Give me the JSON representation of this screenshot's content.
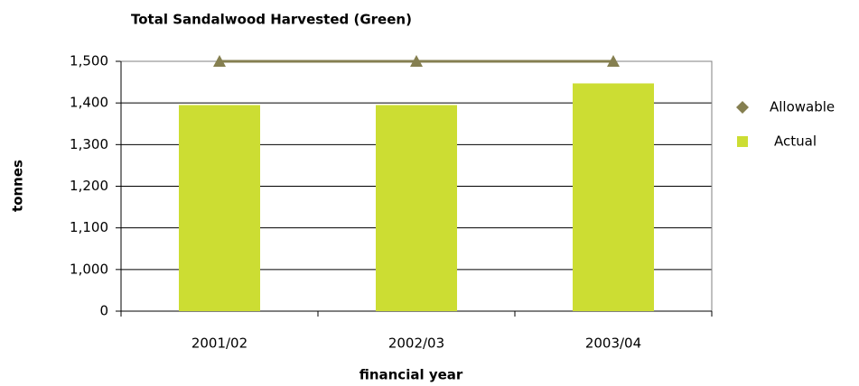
{
  "chart_data": {
    "type": "bar-line",
    "title": "Total Sandalwood Harvested (Green)",
    "x_label": "financial year",
    "y_label": "tonnes",
    "categories": [
      "2001/02",
      "2002/03",
      "2003/04"
    ],
    "series": [
      {
        "name": "Allowable",
        "type": "line",
        "color": "#857f50",
        "values": [
          1500,
          1500,
          1500
        ]
      },
      {
        "name": "Actual",
        "type": "bar",
        "color": "#ccdd33",
        "values": [
          1395,
          1395,
          1447
        ]
      }
    ],
    "ylim": [
      0,
      1500
    ],
    "yticks": [
      0,
      {
        "value": 1000,
        "label": "1,000"
      },
      {
        "value": 1100,
        "label": "1,100"
      },
      {
        "value": 1200,
        "label": "1,200"
      },
      {
        "value": 1300,
        "label": "1,300"
      },
      {
        "value": 1400,
        "label": "1,400"
      },
      {
        "value": 1500,
        "label": "1,500"
      }
    ],
    "grid": true,
    "legend": "right"
  }
}
